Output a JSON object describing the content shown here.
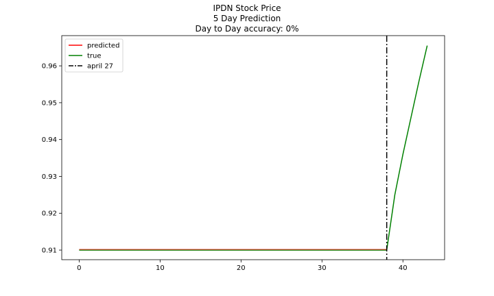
{
  "chart_data": {
    "type": "line",
    "title_lines": [
      "IPDN Stock Price",
      "5 Day Prediction",
      "Day to Day accuracy: 0%"
    ],
    "xlabel": "",
    "ylabel": "",
    "xlim": [
      -2.15,
      45.15
    ],
    "ylim": [
      0.9074,
      0.9682
    ],
    "xticks": [
      0,
      10,
      20,
      30,
      40
    ],
    "yticks": [
      0.91,
      0.92,
      0.93,
      0.94,
      0.95,
      0.96
    ],
    "ytick_labels": [
      "0.91",
      "0.92",
      "0.93",
      "0.94",
      "0.95",
      "0.96"
    ],
    "grid": false,
    "legend_position": "upper-left",
    "series": [
      {
        "name": "predicted",
        "color": "#ff0000",
        "x": [
          0,
          38
        ],
        "y": [
          0.9102,
          0.9102
        ]
      },
      {
        "name": "true",
        "color": "#008000",
        "x": [
          0,
          38,
          39,
          40,
          41,
          42,
          43
        ],
        "y": [
          0.91,
          0.91,
          0.925,
          0.936,
          0.946,
          0.956,
          0.9655
        ]
      }
    ],
    "vline": {
      "name": "april 27",
      "x": 38,
      "color": "#000000",
      "style": "dashdot"
    }
  }
}
